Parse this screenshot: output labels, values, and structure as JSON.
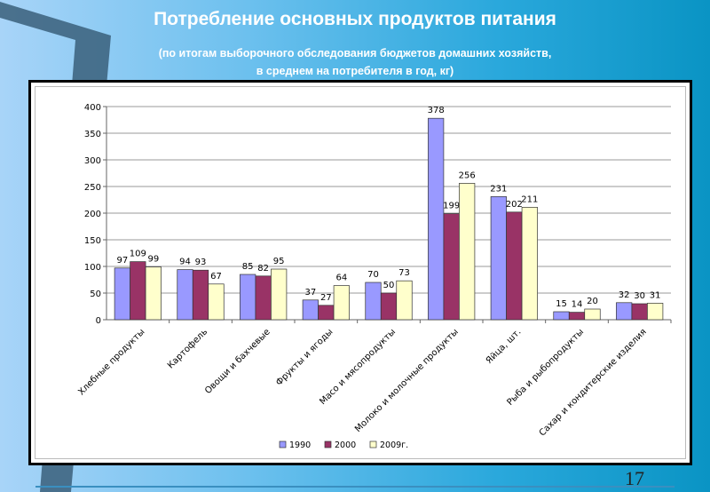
{
  "slide": {
    "title": "Потребление основных продуктов питания",
    "subtitle_line1": "(по итогам выборочного обследования бюджетов домашних хозяйств,",
    "subtitle_line2": "в среднем на потребителя в год, кг)",
    "page_number": "17"
  },
  "chart_data": {
    "type": "bar",
    "title": "",
    "xlabel": "",
    "ylabel": "",
    "ylim": [
      0,
      400
    ],
    "yticks": [
      0,
      50,
      100,
      150,
      200,
      250,
      300,
      350,
      400
    ],
    "grid": true,
    "legend_position": "bottom",
    "categories": [
      "Хлебные продукты",
      "Картофель",
      "Овощи и бахчевые",
      "Фрукты и ягоды",
      "Масо и мясопродукты",
      "Молоко и молочные продукты",
      "Яйца, шт.",
      "Рыба и рыбопродукты",
      "Сахар и кондитерские изделия"
    ],
    "series": [
      {
        "name": "1990",
        "color": "#9999ff",
        "values": [
          97,
          94,
          85,
          37,
          70,
          378,
          231,
          15,
          32
        ]
      },
      {
        "name": "2000",
        "color": "#993366",
        "values": [
          109,
          93,
          82,
          27,
          50,
          199,
          202,
          14,
          30
        ]
      },
      {
        "name": "2009г.",
        "color": "#ffffcc",
        "values": [
          99,
          67,
          95,
          64,
          73,
          256,
          211,
          20,
          31
        ]
      }
    ]
  }
}
